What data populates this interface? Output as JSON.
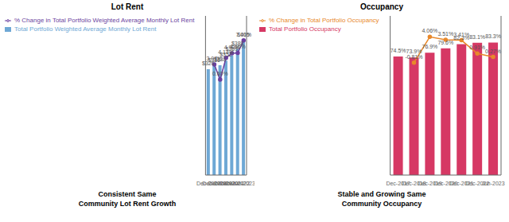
{
  "chart_data": [
    {
      "type": "bar",
      "title": "Lot Rent",
      "subtitle": "Consistent Same\nCommunity Lot Rent Growth",
      "categories": [
        "Dec-2017",
        "Dec-2018",
        "Dec-2019",
        "Dec-2020",
        "Dec-2021",
        "Dec-2022",
        "Jun-2023"
      ],
      "series": [
        {
          "name": "Total Portfolio Weighted Average Monthly Lot Rent",
          "type": "bar",
          "color": "#6EA8D5",
          "values": [
            326,
            336,
            338,
            352,
            369,
            388,
            415
          ],
          "value_labels": [
            "$326",
            "$336",
            "$338",
            "$352",
            "$369",
            "$388",
            "$415"
          ]
        },
        {
          "name": "% Change in Total Portfolio Weighted Average Monthly Lot Rent",
          "type": "line",
          "color": "#6B3FA0",
          "axis": "y2",
          "marker": "circle",
          "values": [
            null,
            3.07,
            0.6,
            4.14,
            4.9,
            4.96,
            7.0
          ],
          "value_labels": [
            null,
            "3.07%",
            "0.60%",
            "4.14%",
            "4.90%",
            "4.96%",
            "7.00%"
          ]
        }
      ],
      "ylim": [
        0,
        490
      ],
      "y2lim": [
        -15,
        11
      ],
      "data_labels": true,
      "tick_labels": "x",
      "grid": false,
      "legend": "upper left"
    },
    {
      "type": "bar",
      "title": "Occupancy",
      "subtitle": "Stable and Growing Same\nCommunity Occupancy",
      "categories": [
        "Dec-2017",
        "Dec-2018",
        "Dec-2019",
        "Dec-2020",
        "Dec-2021",
        "Dec-2022",
        "Jun-2023"
      ],
      "series": [
        {
          "name": "Total Portfolio Occupancy",
          "type": "bar",
          "color": "#D63864",
          "values": [
            74.5,
            73.9,
            76.9,
            79.6,
            82.3,
            83.1,
            83.3
          ],
          "value_labels": [
            "74.5%",
            "73.9%",
            "76.9%",
            "79.6%",
            "82.3%",
            "83.1%",
            "83.3%"
          ]
        },
        {
          "name": "% Change in Total Portfolio Occupancy",
          "type": "line",
          "color": "#E8882A",
          "axis": "y2",
          "marker": "circle",
          "values": [
            null,
            -0.81,
            4.06,
            3.51,
            3.41,
            0.91,
            0.27
          ],
          "value_labels": [
            null,
            "-0.81%",
            "4.06%",
            "3.51%",
            "3.41%",
            "0.91%",
            "0.27%"
          ]
        }
      ],
      "ylim": [
        0,
        100
      ],
      "y2lim": [
        -22,
        8
      ],
      "data_labels": true,
      "tick_labels": "x",
      "grid": false,
      "legend": "upper left"
    }
  ]
}
